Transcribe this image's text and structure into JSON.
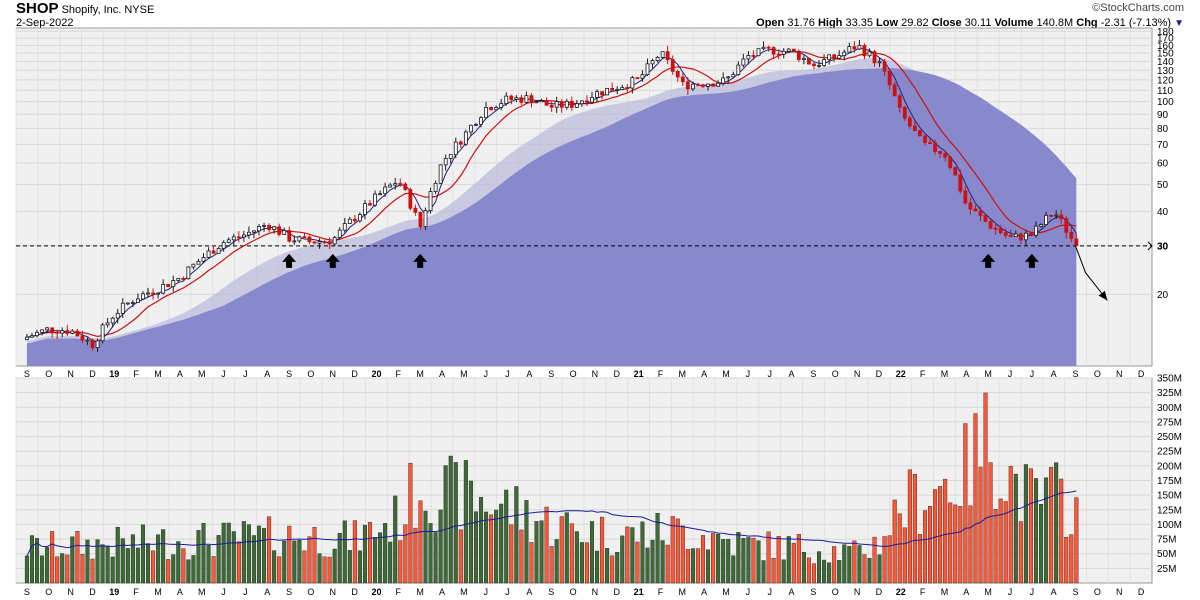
{
  "header": {
    "symbol": "SHOP",
    "company": "Shopify, Inc.",
    "exchange": "NYSE",
    "date": "2-Sep-2022",
    "watermark": "©StockCharts.com",
    "quote": {
      "open_label": "Open",
      "open": "31.76",
      "high_label": "High",
      "high": "33.35",
      "low_label": "Low",
      "low": "29.82",
      "close_label": "Close",
      "close": "30.11",
      "volume_label": "Volume",
      "volume": "140.8M",
      "chg_label": "Chg",
      "chg": "-2.31 (-7.13%)"
    }
  },
  "colors": {
    "up": "#1a1a1a",
    "down": "#cc1111",
    "ma_fast": "#1a237e",
    "ma_mid": "#cc1111",
    "area": "#8888cc",
    "vol_up": "#3d6b35",
    "vol_down": "#ff5533",
    "vol_ma": "#1a1aa0",
    "panel_bg": "#f0f0f0"
  },
  "icons": [
    "down-triangle-icon",
    "up-arrow-icon",
    "forecast-arrow-icon"
  ],
  "chart_data": [
    {
      "type": "candlestick",
      "title": "SHOP",
      "y_scale": "log",
      "ylim": [
        11,
        185
      ],
      "grid": true,
      "y_ticks": [
        180,
        170,
        160,
        150,
        140,
        130,
        120,
        110,
        100,
        90,
        80,
        70,
        60,
        50,
        40,
        30,
        20
      ],
      "x_ticks": [
        "S",
        "O",
        "N",
        "D",
        "19",
        "F",
        "M",
        "A",
        "M",
        "J",
        "J",
        "A",
        "S",
        "O",
        "N",
        "D",
        "20",
        "F",
        "M",
        "A",
        "M",
        "J",
        "J",
        "A",
        "S",
        "O",
        "N",
        "D",
        "21",
        "F",
        "M",
        "A",
        "M",
        "J",
        "J",
        "A",
        "S",
        "O",
        "N",
        "D",
        "22",
        "F",
        "M",
        "A",
        "M",
        "J",
        "J",
        "A",
        "S",
        "O",
        "N",
        "D"
      ],
      "x_ticks_bold": [
        "19",
        "20",
        "21",
        "22"
      ],
      "support_level": {
        "value": 30,
        "label": "30"
      },
      "support_arrows": [
        "Sep 2019",
        "Nov 2019",
        "Mar 2020",
        "May 2022",
        "Jul 2022"
      ],
      "forecast_path": [
        [
          "Sep 2022",
          30
        ],
        [
          "Sep 2022",
          24
        ],
        [
          "Oct 2022",
          19
        ]
      ],
      "weekly_close_knots": [
        [
          "Sep 2018",
          14
        ],
        [
          "Oct 2018",
          15
        ],
        [
          "Nov 2018",
          14.8
        ],
        [
          "Dec 2018",
          13.2
        ],
        [
          "Jan 2019",
          17
        ],
        [
          "Feb 2019",
          19.5
        ],
        [
          "Mar 2019",
          21
        ],
        [
          "Apr 2019",
          23
        ],
        [
          "May 2019",
          27
        ],
        [
          "Jun 2019",
          31
        ],
        [
          "Jul 2019",
          33
        ],
        [
          "Aug 2019",
          36
        ],
        [
          "Sep 2019",
          32
        ],
        [
          "Oct 2019",
          31
        ],
        [
          "Nov 2019",
          31.5
        ],
        [
          "Dec 2019",
          38
        ],
        [
          "Jan 2020",
          45
        ],
        [
          "Feb 2020",
          52
        ],
        [
          "Mar 2020",
          35
        ],
        [
          "Apr 2020",
          60
        ],
        [
          "May 2020",
          75
        ],
        [
          "Jun 2020",
          95
        ],
        [
          "Jul 2020",
          102
        ],
        [
          "Aug 2020",
          103
        ],
        [
          "Sep 2020",
          96
        ],
        [
          "Oct 2020",
          98
        ],
        [
          "Nov 2020",
          107
        ],
        [
          "Dec 2020",
          113
        ],
        [
          "Jan 2021",
          120
        ],
        [
          "Feb 2021",
          150
        ],
        [
          "Mar 2021",
          115
        ],
        [
          "Apr 2021",
          117
        ],
        [
          "May 2021",
          119
        ],
        [
          "Jun 2021",
          146
        ],
        [
          "Jul 2021",
          154
        ],
        [
          "Aug 2021",
          152
        ],
        [
          "Sep 2021",
          136
        ],
        [
          "Oct 2021",
          145
        ],
        [
          "Nov 2021",
          160
        ],
        [
          "Dec 2021",
          138
        ],
        [
          "Jan 2022",
          90
        ],
        [
          "Feb 2022",
          70
        ],
        [
          "Mar 2022",
          65
        ],
        [
          "Apr 2022",
          42
        ],
        [
          "May 2022",
          36
        ],
        [
          "Jun 2022",
          32
        ],
        [
          "Jul 2022",
          33
        ],
        [
          "Aug 2022",
          40
        ],
        [
          "Sep 2022",
          30.11
        ]
      ]
    },
    {
      "type": "bar",
      "title": "Volume",
      "ylim": [
        0,
        350
      ],
      "unit": "M",
      "y_ticks": [
        "350M",
        "325M",
        "300M",
        "275M",
        "250M",
        "225M",
        "200M",
        "175M",
        "150M",
        "125M",
        "100M",
        "75M",
        "50M",
        "25M"
      ],
      "volume_knots": [
        [
          "Sep 2018",
          60
        ],
        [
          "Dec 2018",
          65
        ],
        [
          "Mar 2019",
          70
        ],
        [
          "Jun 2019",
          75
        ],
        [
          "Sep 2019",
          80
        ],
        [
          "Dec 2019",
          75
        ],
        [
          "Feb 2020",
          110
        ],
        [
          "Mar 2020",
          170
        ],
        [
          "Apr 2020",
          150
        ],
        [
          "May 2020",
          150
        ],
        [
          "Jul 2020",
          130
        ],
        [
          "Sep 2020",
          100
        ],
        [
          "Dec 2020",
          80
        ],
        [
          "Mar 2021",
          90
        ],
        [
          "Jun 2021",
          65
        ],
        [
          "Sep 2021",
          60
        ],
        [
          "Nov 2021",
          50
        ],
        [
          "Dec 2021",
          70
        ],
        [
          "Jan 2022",
          130
        ],
        [
          "Feb 2022",
          150
        ],
        [
          "Apr 2022",
          190
        ],
        [
          "May 2022",
          250
        ],
        [
          "Jun 2022",
          180
        ],
        [
          "Jul 2022",
          140
        ],
        [
          "Aug 2022",
          150
        ],
        [
          "Sep 2022",
          130
        ]
      ]
    }
  ]
}
